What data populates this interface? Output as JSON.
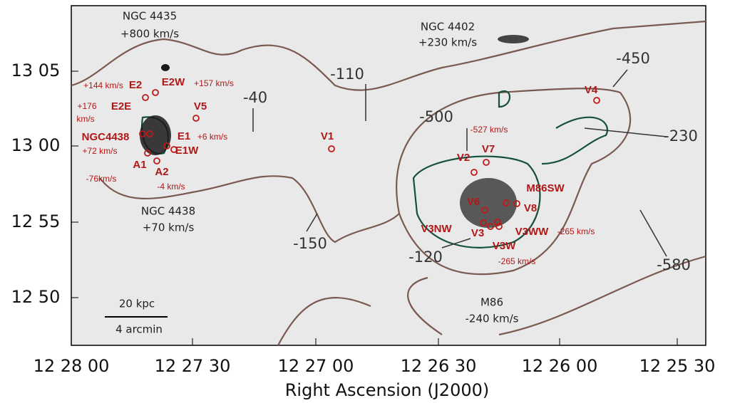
{
  "figure": {
    "x_axis": {
      "label": "Right Ascension (J2000)",
      "ticks": [
        "12 28 00",
        "12 27 30",
        "12 27 00",
        "12 26 30",
        "12 26 00",
        "12 25 30"
      ]
    },
    "y_axis": {
      "ticks": [
        "13 05",
        "13 00",
        "12 55",
        "12 50"
      ]
    },
    "region_labels": [
      "E2",
      "E2W",
      "E2E",
      "V5",
      "NGC4438",
      "E1",
      "E1W",
      "A1",
      "A2",
      "V1",
      "V2",
      "V7",
      "M86SW",
      "V6",
      "V8",
      "V3NW",
      "V3",
      "V3WW",
      "V3W",
      "V4"
    ],
    "velocity_labels": [
      "+144 km/s",
      "+157 km/s",
      "+176",
      "km/s",
      "+6 km/s",
      "+72 km/s",
      "-76km/s",
      "-4 km/s",
      "-527 km/s",
      "-265 km/s",
      "-265 km/s"
    ],
    "galaxy_labels": [
      "NGC 4435",
      "+800 km/s",
      "NGC 4402",
      "+230 km/s",
      "NGC 4438",
      "+70 km/s",
      "M86",
      "-240 km/s"
    ],
    "contour_labels": [
      "-40",
      "-110",
      "-450",
      "-500",
      "-230",
      "-150",
      "-120",
      "-580"
    ],
    "scale_bar": {
      "physical": "20 kpc",
      "angular": "4 arcmin"
    }
  }
}
